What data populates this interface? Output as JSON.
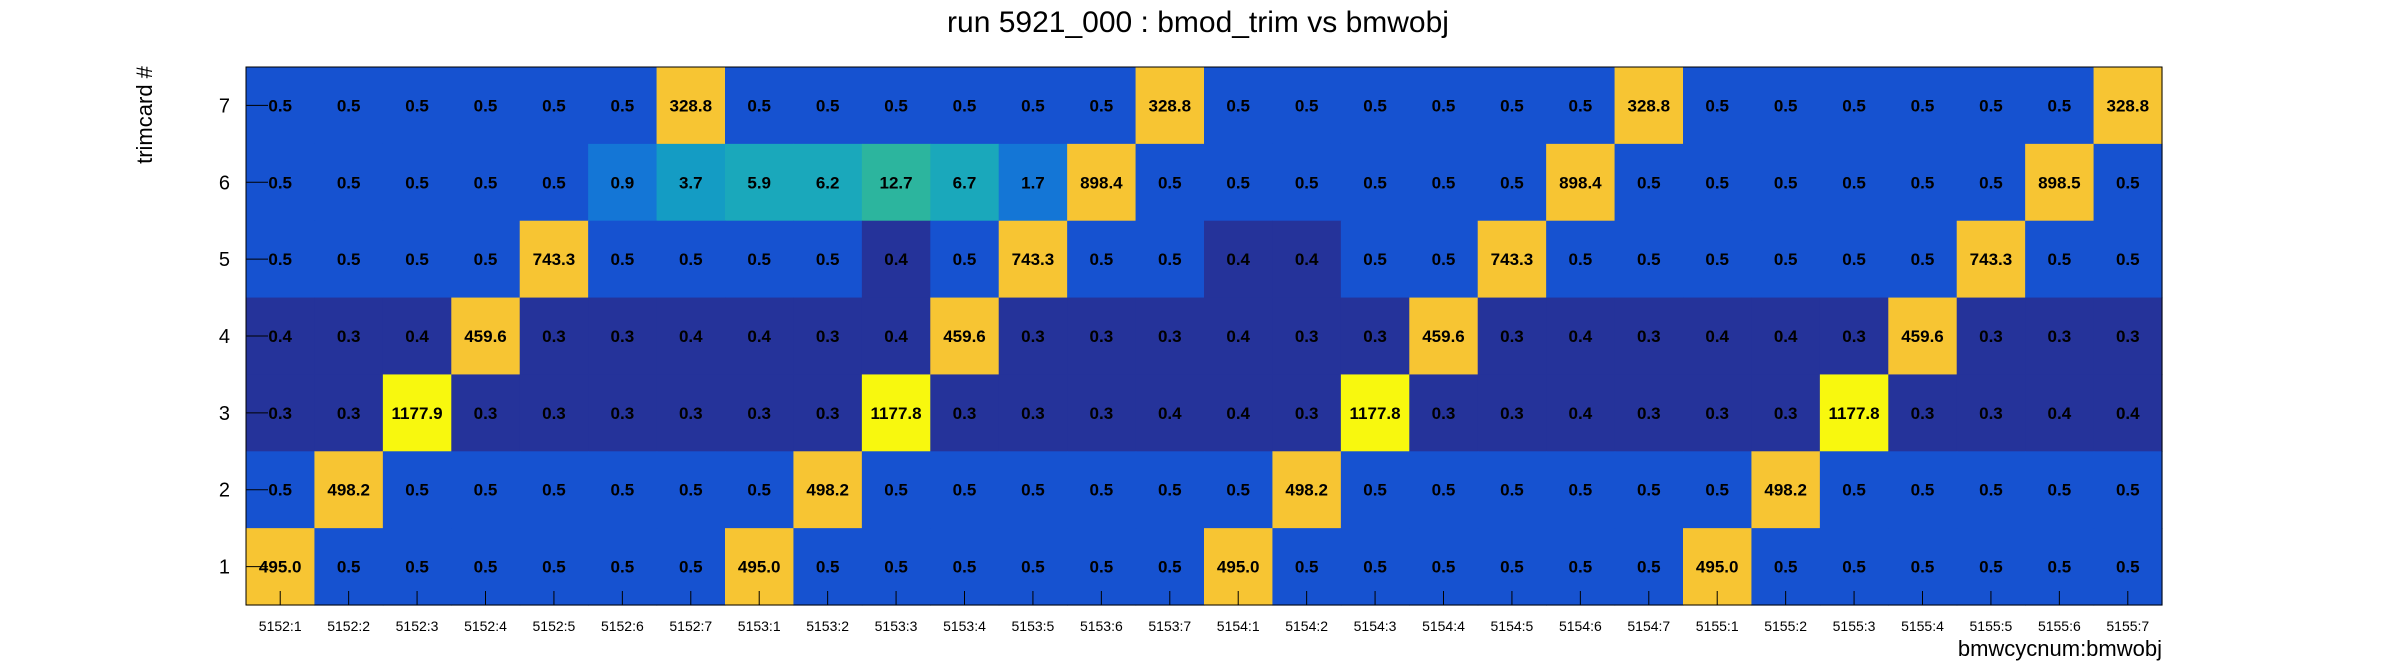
{
  "chart_data": {
    "type": "heatmap",
    "title": "run 5921_000 : bmod_trim vs bmwobj",
    "xlabel": "bmwcycnum:bmwobj",
    "ylabel": "trimcard #",
    "x_categories": [
      "5152:1",
      "5152:2",
      "5152:3",
      "5152:4",
      "5152:5",
      "5152:6",
      "5152:7",
      "5153:1",
      "5153:2",
      "5153:3",
      "5153:4",
      "5153:5",
      "5153:6",
      "5153:7",
      "5154:1",
      "5154:2",
      "5154:3",
      "5154:4",
      "5154:5",
      "5154:6",
      "5154:7",
      "5155:1",
      "5155:2",
      "5155:3",
      "5155:4",
      "5155:5",
      "5155:6",
      "5155:7"
    ],
    "y_categories": [
      "1",
      "2",
      "3",
      "4",
      "5",
      "6",
      "7"
    ],
    "rows": [
      {
        "y": "7",
        "values": [
          0.5,
          0.5,
          0.5,
          0.5,
          0.5,
          0.5,
          328.8,
          0.5,
          0.5,
          0.5,
          0.5,
          0.5,
          0.5,
          328.8,
          0.5,
          0.5,
          0.5,
          0.5,
          0.5,
          0.5,
          328.8,
          0.5,
          0.5,
          0.5,
          0.5,
          0.5,
          0.5,
          328.8
        ]
      },
      {
        "y": "6",
        "values": [
          0.5,
          0.5,
          0.5,
          0.5,
          0.5,
          0.9,
          3.7,
          5.9,
          6.2,
          12.7,
          6.7,
          1.7,
          898.4,
          0.5,
          0.5,
          0.5,
          0.5,
          0.5,
          0.5,
          898.4,
          0.5,
          0.5,
          0.5,
          0.5,
          0.5,
          0.5,
          898.5,
          0.5
        ]
      },
      {
        "y": "5",
        "values": [
          0.5,
          0.5,
          0.5,
          0.5,
          743.3,
          0.5,
          0.5,
          0.5,
          0.5,
          0.4,
          0.5,
          743.3,
          0.5,
          0.5,
          0.4,
          0.4,
          0.5,
          0.5,
          743.3,
          0.5,
          0.5,
          0.5,
          0.5,
          0.5,
          0.5,
          743.3,
          0.5,
          0.5
        ]
      },
      {
        "y": "4",
        "values": [
          0.4,
          0.3,
          0.4,
          459.6,
          0.3,
          0.3,
          0.4,
          0.4,
          0.3,
          0.4,
          459.6,
          0.3,
          0.3,
          0.3,
          0.4,
          0.3,
          0.3,
          459.6,
          0.3,
          0.4,
          0.3,
          0.4,
          0.4,
          0.3,
          459.6,
          0.3,
          0.3,
          0.3
        ]
      },
      {
        "y": "3",
        "values": [
          0.3,
          0.3,
          1177.9,
          0.3,
          0.3,
          0.3,
          0.3,
          0.3,
          0.3,
          1177.8,
          0.3,
          0.3,
          0.3,
          0.4,
          0.4,
          0.3,
          1177.8,
          0.3,
          0.3,
          0.4,
          0.3,
          0.3,
          0.3,
          1177.8,
          0.3,
          0.3,
          0.4,
          0.4
        ]
      },
      {
        "y": "2",
        "values": [
          0.5,
          498.2,
          0.5,
          0.5,
          0.5,
          0.5,
          0.5,
          0.5,
          498.2,
          0.5,
          0.5,
          0.5,
          0.5,
          0.5,
          0.5,
          498.2,
          0.5,
          0.5,
          0.5,
          0.5,
          0.5,
          0.5,
          498.2,
          0.5,
          0.5,
          0.5,
          0.5,
          0.5
        ]
      },
      {
        "y": "1",
        "values": [
          495.0,
          0.5,
          0.5,
          0.5,
          0.5,
          0.5,
          0.5,
          495.0,
          0.5,
          0.5,
          0.5,
          0.5,
          0.5,
          0.5,
          495.0,
          0.5,
          0.5,
          0.5,
          0.5,
          0.5,
          0.5,
          495.0,
          0.5,
          0.5,
          0.5,
          0.5,
          0.5,
          0.5
        ]
      }
    ],
    "label_format": "one decimal",
    "colors": {
      "low": "#25339a",
      "mid": "#1652d0",
      "light": "#1476d6",
      "teal1": "#149cc4",
      "teal2": "#1aa8bb",
      "teal3": "#2cb59e",
      "high": "#f7c533",
      "max": "#f8f80e"
    },
    "legend": "none",
    "grid": false
  }
}
